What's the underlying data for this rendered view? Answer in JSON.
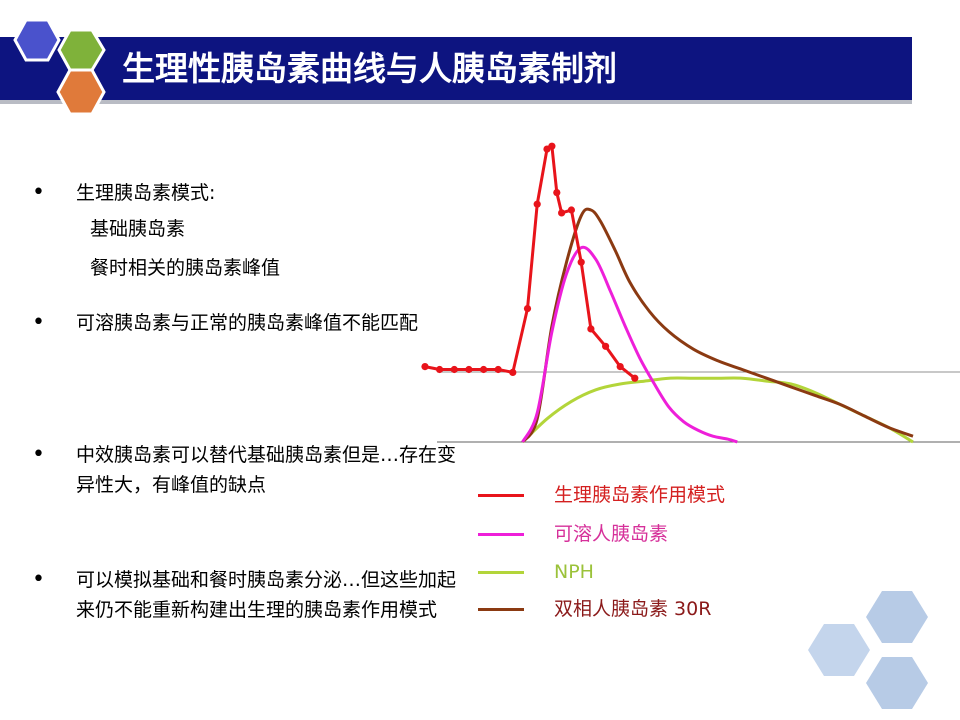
{
  "header": {
    "title": "生理性胰岛素曲线与人胰岛素制剂"
  },
  "bullets": [
    {
      "text": "生理胰岛素模式:",
      "subitems": [
        "基础胰岛素",
        "餐时相关的胰岛素峰值"
      ]
    },
    {
      "text": "可溶胰岛素与正常的胰岛素峰值不能匹配",
      "subitems": []
    },
    {
      "text": "中效胰岛素可以替代基础胰岛素但是…存在变异性大，有峰值的缺点",
      "subitems": []
    },
    {
      "text": "可以模拟基础和餐时胰岛素分泌…但这些加起来仍不能重新构建出生理的胰岛素作用模式",
      "subitems": []
    }
  ],
  "legend": [
    {
      "label": "生理胰岛素作用模式",
      "color": "#e8141b",
      "text_color": "#d42020"
    },
    {
      "label": "可溶人胰岛素",
      "color": "#ee1fd9",
      "text_color": "#d6309a"
    },
    {
      "label": "NPH",
      "color": "#b3d53a",
      "text_color": "#9bc23a"
    },
    {
      "label": "双相人胰岛素 30R",
      "color": "#8b3a12",
      "text_color": "#8b1a1a"
    }
  ],
  "chart_data": {
    "type": "line",
    "title": "",
    "xlabel": "",
    "ylabel": "",
    "grid": false,
    "xlim": [
      0,
      100
    ],
    "ylim": [
      0,
      100
    ],
    "series": [
      {
        "name": "生理胰岛素作用模式",
        "color": "#e8141b",
        "markers": true,
        "x": [
          0,
          3,
          6,
          9,
          12,
          15,
          18,
          21,
          23,
          25,
          26,
          27,
          28,
          30,
          32,
          34,
          37,
          40,
          43
        ],
        "y": [
          26,
          25,
          25,
          25,
          25,
          25,
          24,
          46,
          82,
          101,
          102,
          86,
          79,
          80,
          62,
          39,
          33,
          26,
          22
        ]
      },
      {
        "name": "可溶人胰岛素",
        "color": "#ee1fd9",
        "markers": false,
        "x": [
          20,
          23,
          26,
          29,
          32,
          35,
          38,
          41,
          44,
          47,
          50,
          53,
          56,
          59,
          62,
          64
        ],
        "y": [
          0,
          10,
          38,
          58,
          67,
          63,
          52,
          40,
          29,
          20,
          12,
          7,
          4,
          2,
          1,
          0
        ]
      },
      {
        "name": "NPH",
        "color": "#b3d53a",
        "markers": false,
        "x": [
          20,
          25,
          30,
          35,
          40,
          45,
          50,
          55,
          60,
          65,
          70,
          75,
          80,
          85,
          90,
          95,
          100
        ],
        "y": [
          0,
          8,
          14,
          18,
          20,
          21,
          22,
          22,
          22,
          22,
          21,
          20,
          17,
          13,
          9,
          5,
          0
        ]
      },
      {
        "name": "双相人胰岛素 30R",
        "color": "#8b3a12",
        "markers": false,
        "x": [
          20,
          23,
          26,
          29,
          32,
          34,
          36,
          39,
          42,
          46,
          50,
          55,
          60,
          65,
          70,
          75,
          80,
          85,
          90,
          95,
          100
        ],
        "y": [
          0,
          8,
          40,
          62,
          78,
          80,
          76,
          66,
          55,
          45,
          38,
          32,
          28,
          25,
          22,
          19,
          16,
          13,
          9,
          5,
          2
        ]
      }
    ]
  }
}
